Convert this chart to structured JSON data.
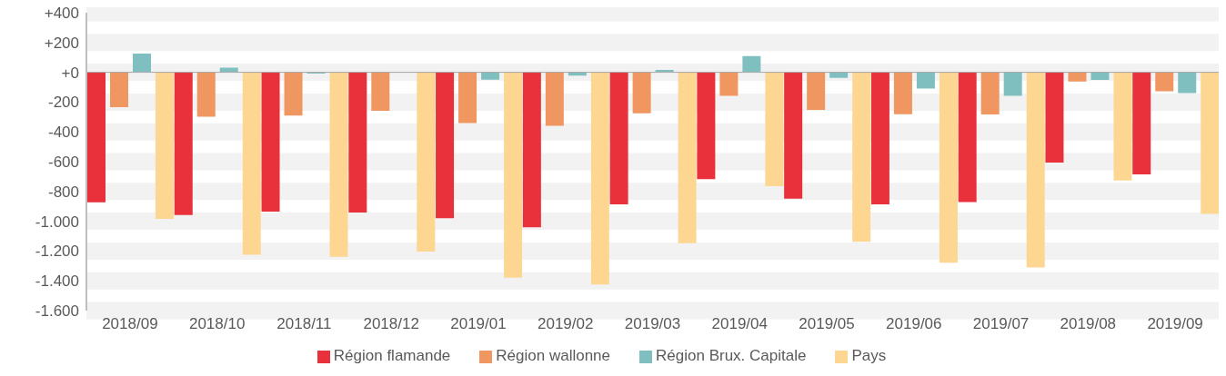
{
  "chart_data": {
    "type": "bar",
    "categories": [
      "2018/09",
      "2018/10",
      "2018/11",
      "2018/12",
      "2019/01",
      "2019/02",
      "2019/03",
      "2019/04",
      "2019/05",
      "2019/06",
      "2019/07",
      "2019/08",
      "2019/09"
    ],
    "series": [
      {
        "name": "Région flamande",
        "color": "#e8313a",
        "values": [
          -873,
          -958,
          -935,
          -942,
          -980,
          -1040,
          -886,
          -717,
          -849,
          -886,
          -871,
          -606,
          -686
        ]
      },
      {
        "name": "Région wallonne",
        "color": "#f09660",
        "values": [
          -234,
          -298,
          -290,
          -258,
          -341,
          -359,
          -276,
          -158,
          -252,
          -281,
          -283,
          -62,
          -127
        ]
      },
      {
        "name": "Région Brux. Capitale",
        "color": "#80bfbf",
        "values": [
          125,
          31,
          -9,
          0,
          -49,
          -22,
          16,
          109,
          -38,
          -109,
          -158,
          -51,
          -140
        ]
      },
      {
        "name": "Pays",
        "color": "#fdd792",
        "values": [
          -984,
          -1225,
          -1238,
          -1203,
          -1379,
          -1425,
          -1147,
          -764,
          -1138,
          -1278,
          -1310,
          -726,
          -951
        ]
      }
    ],
    "ylim": [
      -1600,
      400
    ],
    "yticks": [
      {
        "value": 400,
        "label": "+400"
      },
      {
        "value": 200,
        "label": "+200"
      },
      {
        "value": 0,
        "label": "+0"
      },
      {
        "value": -200,
        "label": "-200"
      },
      {
        "value": -400,
        "label": "-400"
      },
      {
        "value": -600,
        "label": "-600"
      },
      {
        "value": -800,
        "label": "-800"
      },
      {
        "value": -1000,
        "label": "-1.000"
      },
      {
        "value": -1200,
        "label": "-1.200"
      },
      {
        "value": -1400,
        "label": "-1.400"
      },
      {
        "value": -1600,
        "label": "-1.600"
      }
    ],
    "grid": "y",
    "legend": "bottom"
  }
}
